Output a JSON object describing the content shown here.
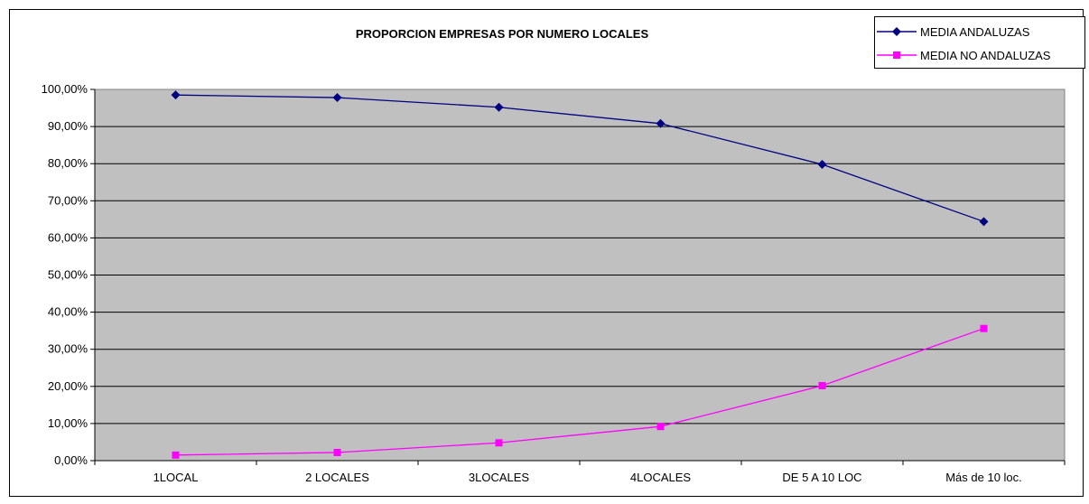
{
  "chart_data": {
    "type": "line",
    "title": "PROPORCION EMPRESAS POR NUMERO LOCALES",
    "xlabel": "",
    "ylabel": "",
    "categories": [
      "1LOCAL",
      "2 LOCALES",
      "3LOCALES",
      "4LOCALES",
      "DE 5 A 10 LOC",
      "Más de 10 loc."
    ],
    "ylim": [
      0,
      100
    ],
    "yticks": [
      "0,00%",
      "10,00%",
      "20,00%",
      "30,00%",
      "40,00%",
      "50,00%",
      "60,00%",
      "70,00%",
      "80,00%",
      "90,00%",
      "100,00%"
    ],
    "series": [
      {
        "name": "MEDIA ANDALUZAS",
        "values": [
          98.5,
          97.8,
          95.2,
          90.8,
          79.8,
          64.4
        ],
        "color": "#000080",
        "marker": "diamond"
      },
      {
        "name": "MEDIA NO ANDALUZAS",
        "values": [
          1.5,
          2.2,
          4.8,
          9.2,
          20.2,
          35.6
        ],
        "color": "#ff00ff",
        "marker": "square"
      }
    ],
    "grid": true,
    "plot_background": "#c0c0c0",
    "legend_position": "top-right"
  }
}
